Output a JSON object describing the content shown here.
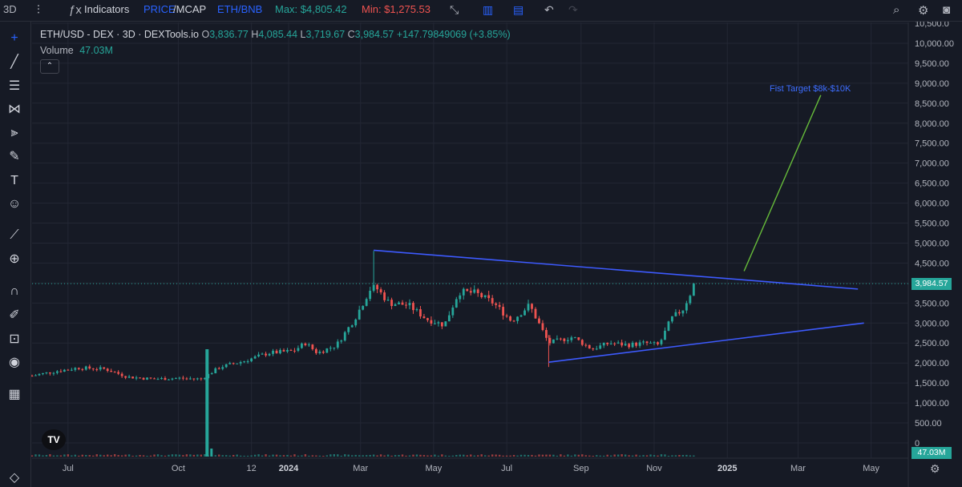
{
  "topbar": {
    "interval": "3D",
    "indicators": "Indicators",
    "price_label": "PRICE",
    "mcap_label": "/MCAP",
    "pair_alt": "ETH/BNB",
    "max_label": "Max: $4,805.42",
    "min_label": "Min: $1,275.53"
  },
  "legend": {
    "title": "ETH/USD - DEX · 3D · DEXTools.io",
    "o_key": "O",
    "o_val": "3,836.77",
    "h_key": "H",
    "h_val": "4,085.44",
    "l_key": "L",
    "l_val": "3,719.67",
    "c_key": "C",
    "c_val": "3,984.57",
    "change": "+147.79849069 (+3.85%)",
    "volume_label": "Volume",
    "volume_value": "47.03M"
  },
  "current_price_label": "3,984.57",
  "current_volume_label": "47.03M",
  "annotation": "Fist Target $8k-$10K",
  "colors": {
    "up": "#26a69a",
    "down": "#ef5350",
    "trendline": "#3d5afe",
    "arrow": "#66bb3a",
    "bg": "#161a25",
    "grid": "#232734",
    "annotation": "#3d6dff"
  },
  "toolbar_icons": [
    "crosshair-icon",
    "trendline-icon",
    "fib-icon",
    "pattern-icon",
    "forecast-icon",
    "brush-icon",
    "text-icon",
    "emoji-icon",
    "ruler-icon",
    "zoom-icon",
    "magnet-icon",
    "lock-drawing-icon",
    "lock-icon",
    "eye-icon",
    "trash-icon"
  ],
  "chart_data": {
    "type": "candlestick",
    "y_axis_ticks": [
      "0",
      "500.00",
      "1,000.00",
      "1,500.00",
      "2,000.00",
      "2,500.00",
      "3,000.00",
      "3,500.00",
      "4,000.00",
      "4,500.00",
      "5,000.00",
      "5,500.00",
      "6,000.00",
      "6,500.00",
      "7,000.00",
      "7,500.00",
      "8,000.00",
      "8,500.00",
      "9,000.00",
      "9,500.00",
      "10,000.00",
      "10,500.0"
    ],
    "ylim": [
      0,
      10500
    ],
    "x_axis_ticks": [
      "Jul",
      "Oct",
      "12",
      "2024",
      "Mar",
      "May",
      "Jul",
      "Sep",
      "Nov",
      "2025",
      "Mar",
      "May"
    ],
    "x_axis_start": "2023-06-01",
    "x_axis_end": "2025-06-01",
    "price_path": [
      [
        "2023-06-01",
        1680
      ],
      [
        "2023-06-20",
        1790
      ],
      [
        "2023-07-10",
        1880
      ],
      [
        "2023-08-01",
        1850
      ],
      [
        "2023-08-20",
        1650
      ],
      [
        "2023-09-10",
        1600
      ],
      [
        "2023-10-01",
        1620
      ],
      [
        "2023-10-20",
        1600
      ],
      [
        "2023-11-05",
        1900
      ],
      [
        "2023-11-25",
        2050
      ],
      [
        "2023-12-15",
        2250
      ],
      [
        "2024-01-05",
        2300
      ],
      [
        "2024-01-15",
        2500
      ],
      [
        "2024-01-25",
        2250
      ],
      [
        "2024-02-10",
        2450
      ],
      [
        "2024-02-25",
        3100
      ],
      [
        "2024-03-10",
        3900
      ],
      [
        "2024-03-15",
        3850
      ],
      [
        "2024-03-25",
        3500
      ],
      [
        "2024-04-10",
        3450
      ],
      [
        "2024-04-25",
        3100
      ],
      [
        "2024-05-10",
        2950
      ],
      [
        "2024-05-22",
        3780
      ],
      [
        "2024-06-05",
        3750
      ],
      [
        "2024-06-20",
        3500
      ],
      [
        "2024-07-05",
        3050
      ],
      [
        "2024-07-20",
        3450
      ],
      [
        "2024-08-05",
        2500
      ],
      [
        "2024-08-25",
        2650
      ],
      [
        "2024-09-10",
        2350
      ],
      [
        "2024-09-25",
        2500
      ],
      [
        "2024-10-10",
        2450
      ],
      [
        "2024-10-25",
        2500
      ],
      [
        "2024-11-05",
        2450
      ],
      [
        "2024-11-15",
        3100
      ],
      [
        "2024-11-25",
        3350
      ],
      [
        "2024-12-05",
        3984
      ]
    ],
    "max_price": 4805.42,
    "min_price": 1275.53,
    "volume_spike": {
      "date": "2023-10-25",
      "label": "volume spike"
    },
    "trendlines": [
      {
        "name": "descending resistance",
        "from": [
          "2024-03-12",
          4820
        ],
        "to": [
          "2025-04-20",
          3850
        ]
      },
      {
        "name": "ascending support",
        "from": [
          "2024-08-05",
          2020
        ],
        "to": [
          "2025-04-25",
          3000
        ]
      }
    ],
    "projection_arrow": {
      "from": [
        "2025-01-15",
        4300
      ],
      "to": [
        "2025-03-20",
        8700
      ]
    },
    "last_price": 3984.57,
    "grid": true
  }
}
